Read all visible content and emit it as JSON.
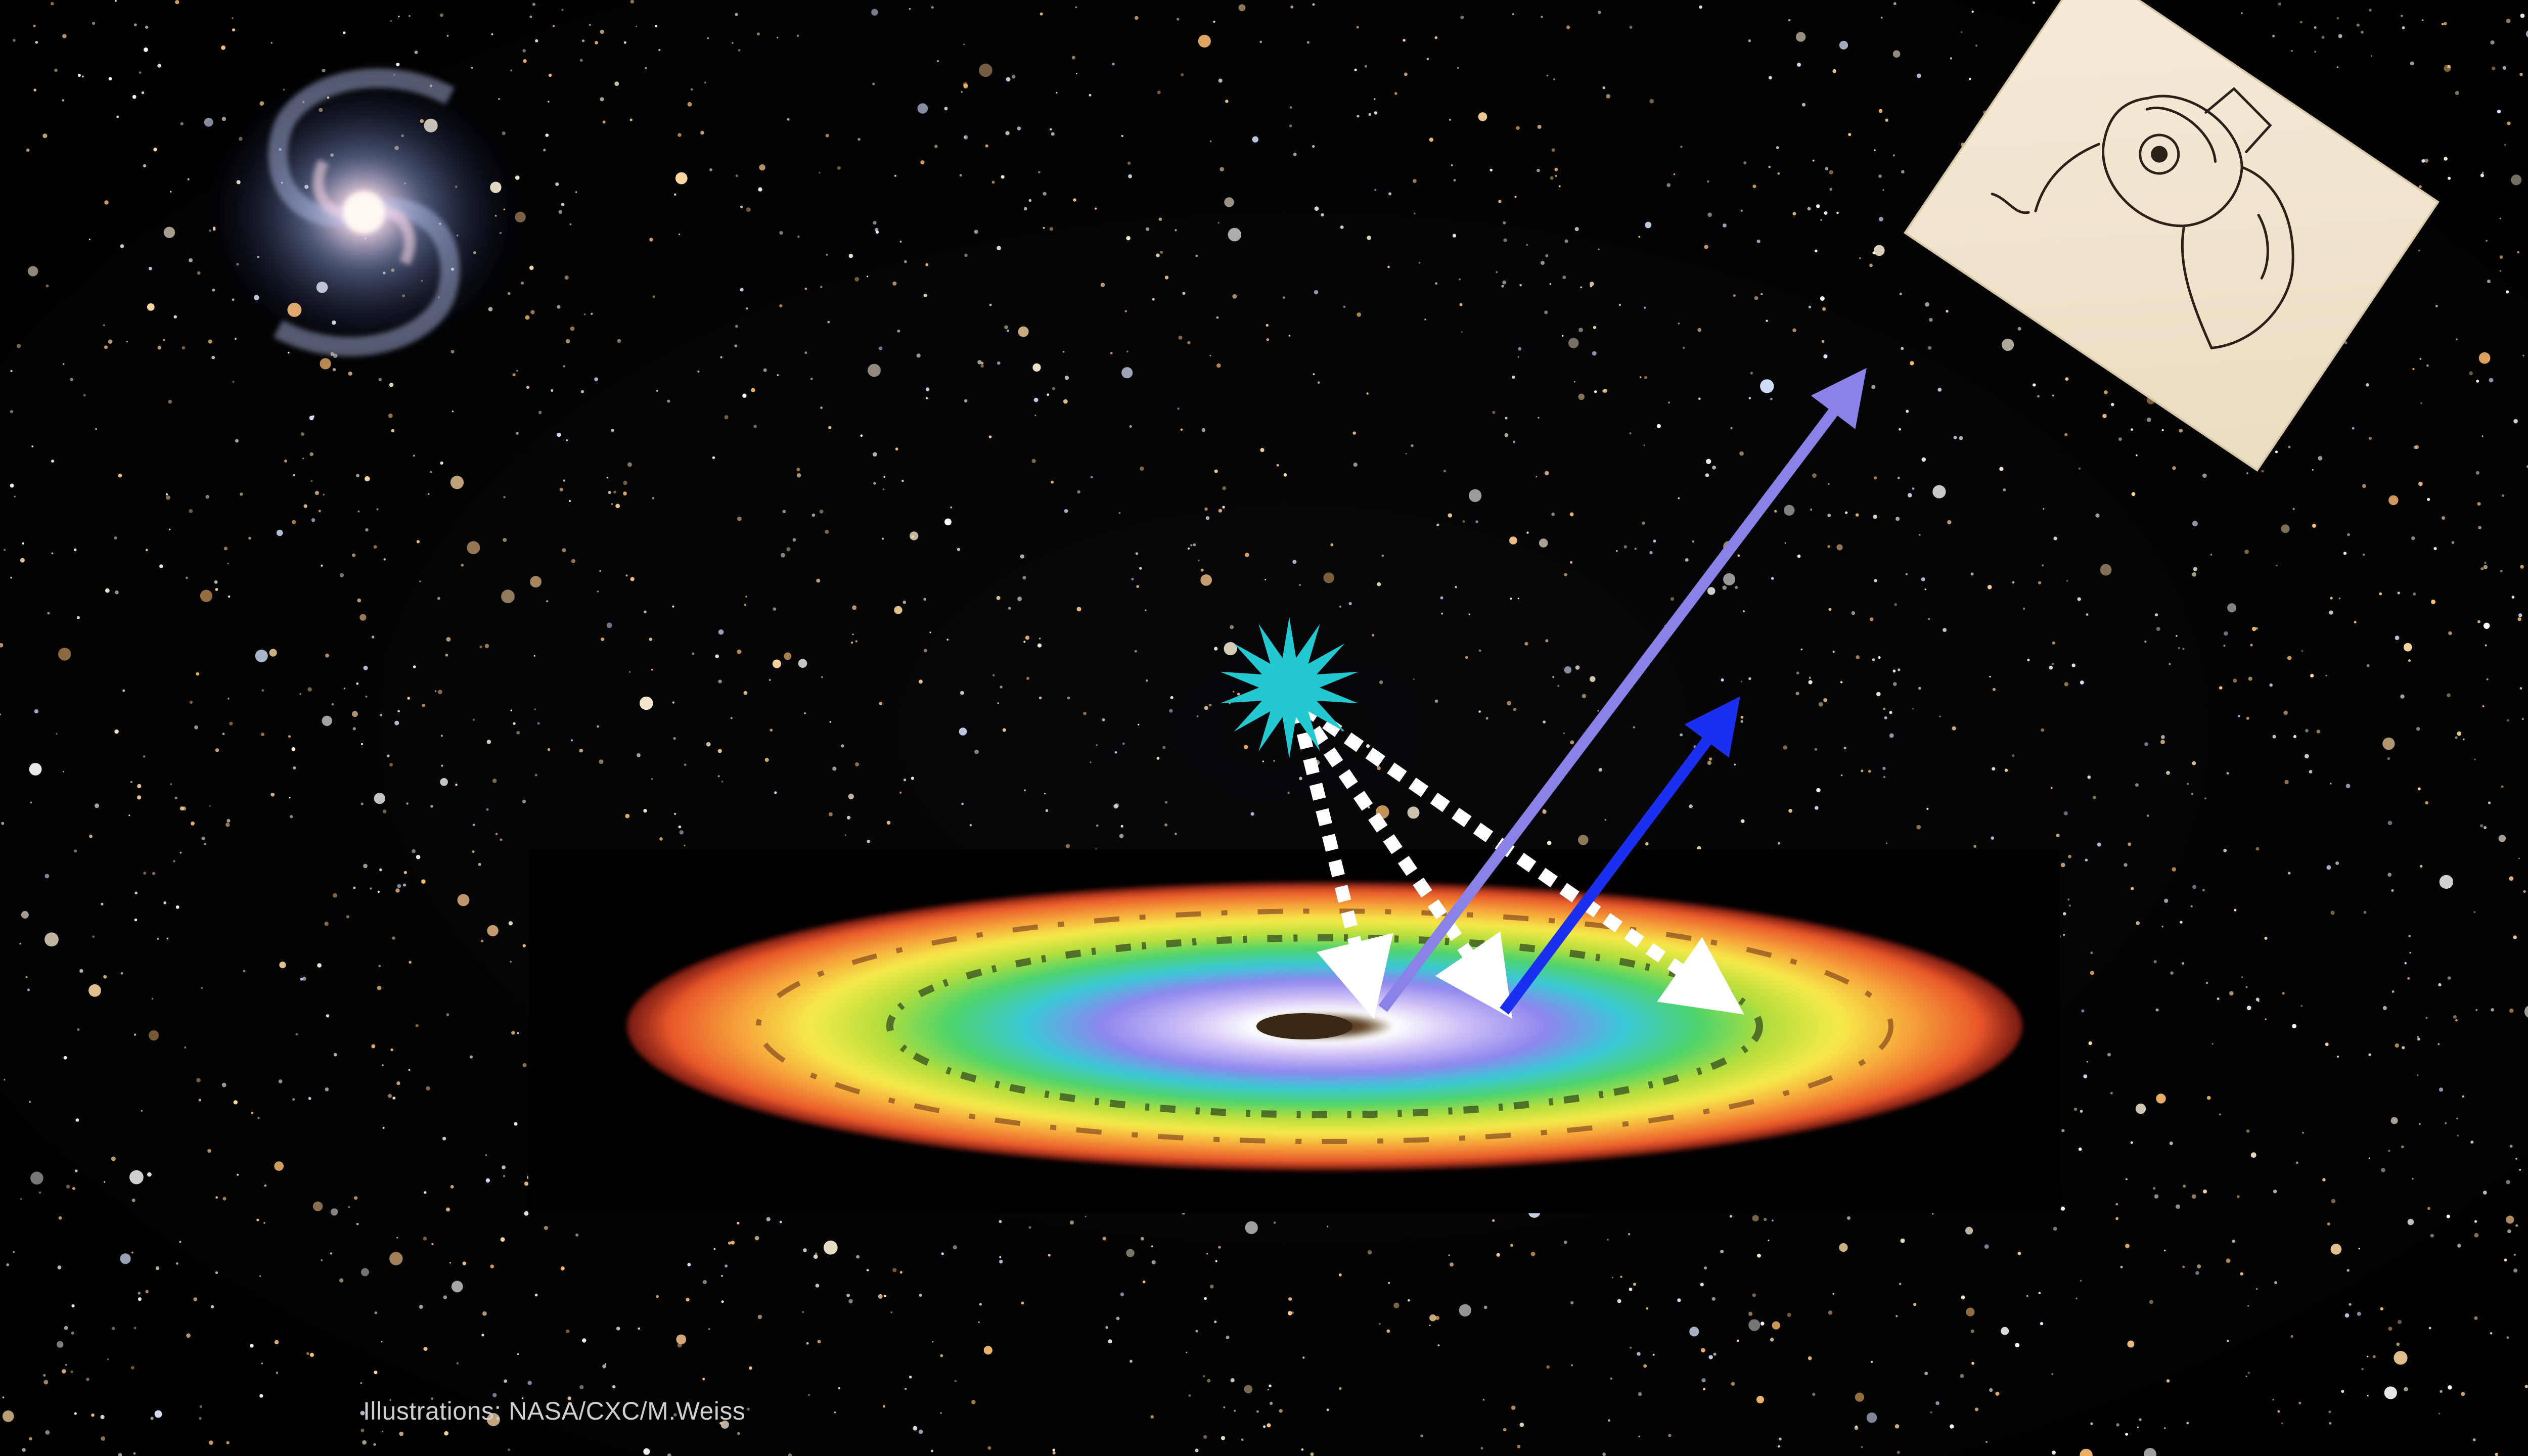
{
  "credit": {
    "text": "Illustrations: NASA/CXC/M.Weiss",
    "color": "#cfcfcf"
  },
  "colors": {
    "background": "#000000",
    "source_star": "#22c9d0",
    "incident_arrows": "#ffffff",
    "reflected_arrow": "#8a82e6",
    "emitted_arrow": "#1a2ff0",
    "sketch_paper": "#f1e6d2"
  },
  "elements": {
    "spiral_galaxy": "spiral-galaxy",
    "accretion_disk": "accretion-disk-rainbow",
    "source": "starburst-icon",
    "sketch": "eye-sketch-observer"
  }
}
